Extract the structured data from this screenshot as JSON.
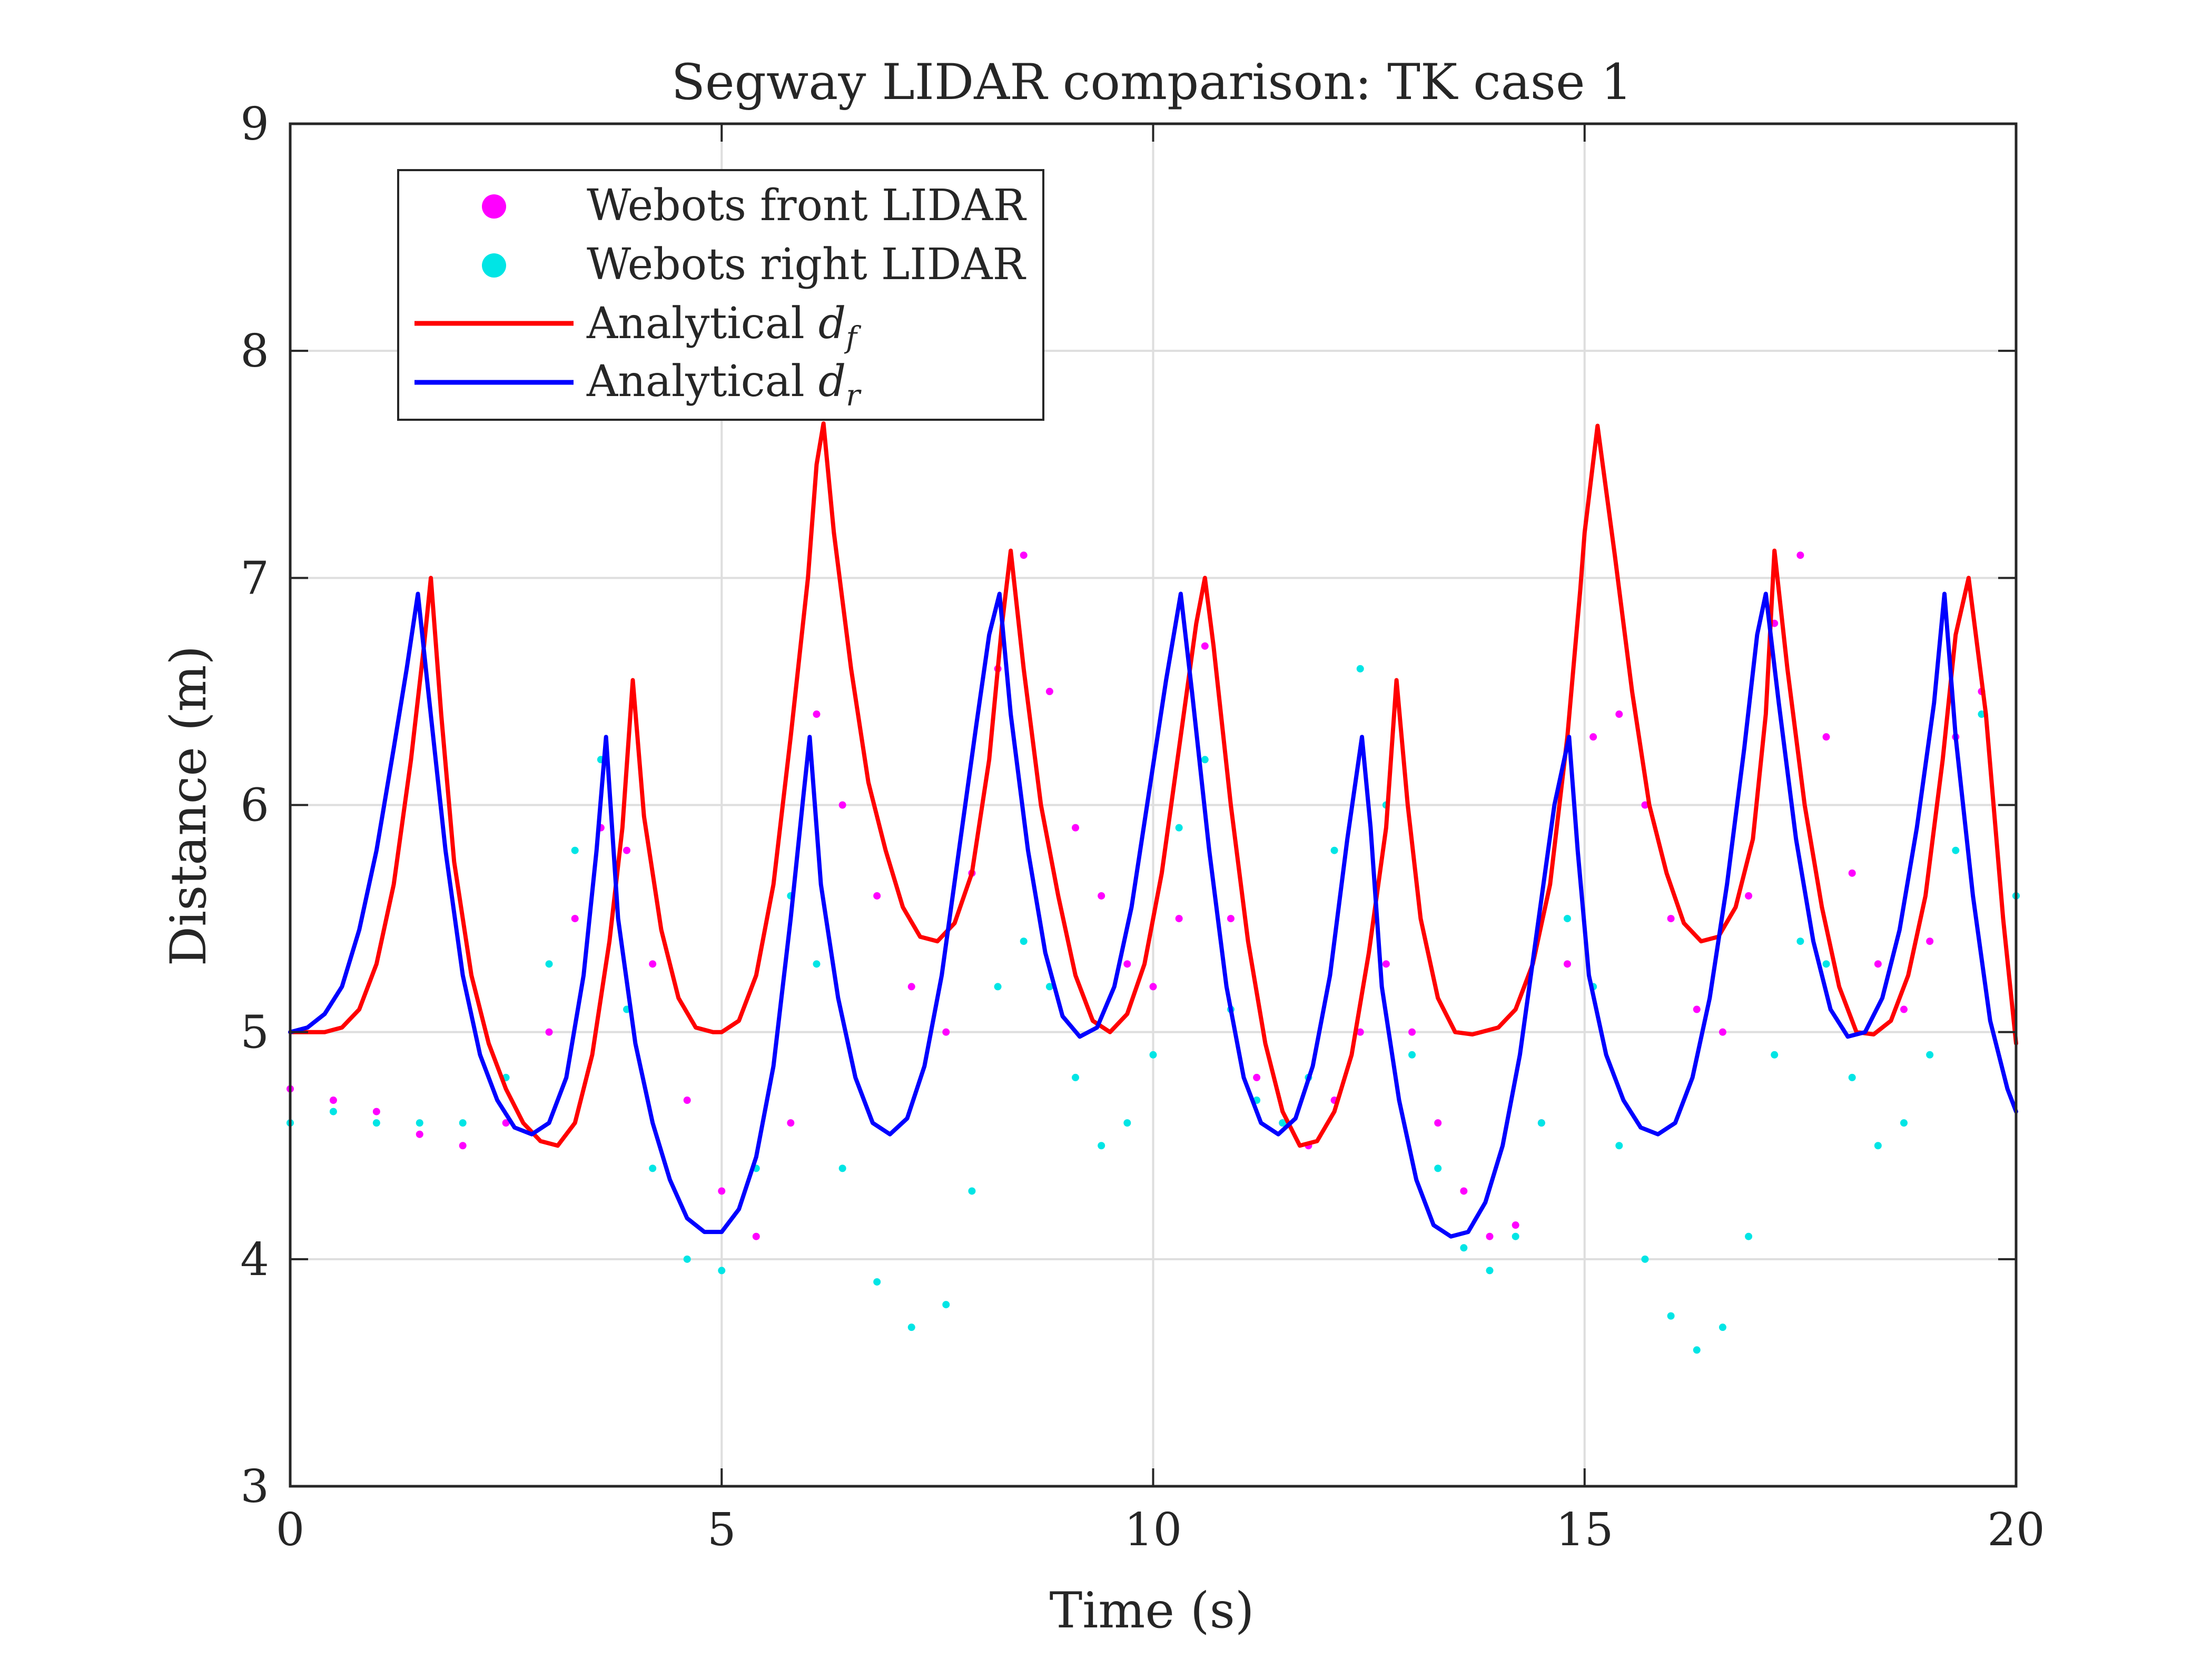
{
  "chart_data": {
    "type": "line",
    "title": "Segway LIDAR comparison: TK case 1",
    "xlabel": "Time (s)",
    "ylabel": "Distance (m)",
    "xlim": [
      0,
      20
    ],
    "ylim": [
      3,
      9
    ],
    "xticks": [
      0,
      5,
      10,
      15,
      20
    ],
    "xtick_labels": [
      "0",
      "5",
      "10",
      "15",
      "20"
    ],
    "yticks": [
      3,
      4,
      5,
      6,
      7,
      8,
      9
    ],
    "ytick_labels": [
      "3",
      "4",
      "5",
      "6",
      "7",
      "8",
      "9"
    ],
    "grid": true,
    "legend_position": "top-left",
    "legend": [
      {
        "label": "Webots front LIDAR",
        "marker": "dot",
        "color": "#ff00ff"
      },
      {
        "label": "Webots right LIDAR",
        "marker": "dot",
        "color": "#00e5e5"
      },
      {
        "label_main": "Analytical ",
        "label_var": "d",
        "label_sub": "f",
        "marker": "line",
        "color": "#ff0000"
      },
      {
        "label_main": "Analytical ",
        "label_var": "d",
        "label_sub": "r",
        "marker": "line",
        "color": "#0000ff"
      }
    ],
    "series": [
      {
        "name": "Webots front LIDAR",
        "kind": "scatter",
        "color": "#ff00ff",
        "x": [
          0.0,
          0.5,
          1.0,
          1.5,
          2.0,
          2.5,
          3.0,
          3.3,
          3.6,
          3.9,
          4.2,
          4.6,
          5.0,
          5.4,
          5.8,
          6.1,
          6.4,
          6.8,
          7.2,
          7.6,
          7.9,
          8.2,
          8.5,
          8.8,
          9.1,
          9.4,
          9.7,
          10.0,
          10.3,
          10.6,
          10.9,
          11.2,
          11.5,
          11.8,
          12.1,
          12.4,
          12.7,
          13.0,
          13.3,
          13.6,
          13.9,
          14.2,
          14.5,
          14.8,
          15.1,
          15.4,
          15.7,
          16.0,
          16.3,
          16.6,
          16.9,
          17.2,
          17.5,
          17.8,
          18.1,
          18.4,
          18.7,
          19.0,
          19.3,
          19.6,
          20.0
        ],
        "y": [
          4.75,
          4.7,
          4.65,
          4.55,
          4.5,
          4.6,
          5.0,
          5.5,
          5.9,
          5.8,
          5.3,
          4.7,
          4.3,
          4.1,
          4.6,
          6.4,
          6.0,
          5.6,
          5.2,
          5.0,
          5.7,
          6.6,
          7.1,
          6.5,
          5.9,
          5.6,
          5.3,
          5.2,
          5.5,
          6.7,
          5.5,
          4.8,
          4.6,
          4.5,
          4.7,
          5.0,
          5.3,
          5.0,
          4.6,
          4.3,
          4.1,
          4.15,
          4.6,
          5.3,
          6.3,
          6.4,
          6.0,
          5.5,
          5.1,
          5.0,
          5.6,
          6.8,
          7.1,
          6.3,
          5.7,
          5.3,
          5.1,
          5.4,
          6.3,
          6.5,
          5.6
        ]
      },
      {
        "name": "Webots right LIDAR",
        "kind": "scatter",
        "color": "#00e5e5",
        "x": [
          0.0,
          0.5,
          1.0,
          1.5,
          2.0,
          2.5,
          3.0,
          3.3,
          3.6,
          3.9,
          4.2,
          4.6,
          5.0,
          5.4,
          5.8,
          6.1,
          6.4,
          6.8,
          7.2,
          7.6,
          7.9,
          8.2,
          8.5,
          8.8,
          9.1,
          9.4,
          9.7,
          10.0,
          10.3,
          10.6,
          10.9,
          11.2,
          11.5,
          11.8,
          12.1,
          12.4,
          12.7,
          13.0,
          13.3,
          13.6,
          13.9,
          14.2,
          14.5,
          14.8,
          15.1,
          15.4,
          15.7,
          16.0,
          16.3,
          16.6,
          16.9,
          17.2,
          17.5,
          17.8,
          18.1,
          18.4,
          18.7,
          19.0,
          19.3,
          19.6,
          20.0
        ],
        "y": [
          4.6,
          4.65,
          4.6,
          4.6,
          4.6,
          4.8,
          5.3,
          5.8,
          6.2,
          5.1,
          4.4,
          4.0,
          3.95,
          4.4,
          5.6,
          5.3,
          4.4,
          3.9,
          3.7,
          3.8,
          4.3,
          5.2,
          5.4,
          5.2,
          4.8,
          4.5,
          4.6,
          4.9,
          5.9,
          6.2,
          5.1,
          4.7,
          4.6,
          4.8,
          5.8,
          6.6,
          6.0,
          4.9,
          4.4,
          4.05,
          3.95,
          4.1,
          4.6,
          5.5,
          5.2,
          4.5,
          4.0,
          3.75,
          3.6,
          3.7,
          4.1,
          4.9,
          5.4,
          5.3,
          4.8,
          4.5,
          4.6,
          4.9,
          5.8,
          6.4,
          5.6
        ]
      },
      {
        "name": "Analytical d_f",
        "kind": "line",
        "color": "#ff0000",
        "x": [
          0.0,
          0.2,
          0.4,
          0.6,
          0.8,
          1.0,
          1.2,
          1.4,
          1.55,
          1.63,
          1.75,
          1.9,
          2.1,
          2.3,
          2.5,
          2.7,
          2.9,
          3.1,
          3.3,
          3.5,
          3.7,
          3.85,
          3.97,
          4.1,
          4.3,
          4.5,
          4.7,
          4.9,
          5.0,
          5.2,
          5.4,
          5.6,
          5.8,
          6.0,
          6.1,
          6.18,
          6.3,
          6.5,
          6.7,
          6.9,
          7.1,
          7.3,
          7.5,
          7.7,
          7.9,
          8.1,
          8.25,
          8.35,
          8.5,
          8.7,
          8.9,
          9.1,
          9.3,
          9.5,
          9.7,
          9.9,
          10.1,
          10.3,
          10.5,
          10.6,
          10.7,
          10.9,
          11.1,
          11.3,
          11.5,
          11.7,
          11.9,
          12.1,
          12.3,
          12.5,
          12.7,
          12.82,
          12.95,
          13.1,
          13.3,
          13.5,
          13.7,
          13.8,
          14.0,
          14.2,
          14.4,
          14.6,
          14.8,
          14.95,
          15.0,
          15.15,
          15.35,
          15.55,
          15.75,
          15.95,
          16.15,
          16.35,
          16.55,
          16.75,
          16.95,
          17.1,
          17.2,
          17.35,
          17.55,
          17.75,
          17.95,
          18.15,
          18.35,
          18.55,
          18.75,
          18.95,
          19.15,
          19.3,
          19.45,
          19.65,
          19.85,
          20.0
        ],
        "y": [
          5.0,
          5.0,
          5.0,
          5.02,
          5.1,
          5.3,
          5.65,
          6.2,
          6.7,
          7.0,
          6.4,
          5.75,
          5.25,
          4.95,
          4.75,
          4.6,
          4.52,
          4.5,
          4.6,
          4.9,
          5.4,
          5.9,
          6.55,
          5.95,
          5.45,
          5.15,
          5.02,
          5.0,
          5.0,
          5.05,
          5.25,
          5.65,
          6.3,
          7.0,
          7.5,
          7.68,
          7.2,
          6.6,
          6.1,
          5.8,
          5.55,
          5.42,
          5.4,
          5.48,
          5.7,
          6.2,
          6.8,
          7.12,
          6.6,
          6.0,
          5.6,
          5.25,
          5.05,
          5.0,
          5.08,
          5.3,
          5.7,
          6.25,
          6.8,
          7.0,
          6.7,
          6.0,
          5.4,
          4.95,
          4.65,
          4.5,
          4.52,
          4.65,
          4.9,
          5.35,
          5.9,
          6.55,
          6.0,
          5.5,
          5.15,
          5.0,
          4.99,
          5.0,
          5.02,
          5.1,
          5.3,
          5.65,
          6.3,
          6.95,
          7.2,
          7.67,
          7.1,
          6.5,
          6.0,
          5.7,
          5.48,
          5.4,
          5.42,
          5.55,
          5.85,
          6.4,
          7.12,
          6.6,
          6.0,
          5.55,
          5.2,
          5.0,
          4.99,
          5.05,
          5.25,
          5.6,
          6.2,
          6.75,
          7.0,
          6.4,
          5.5,
          4.95
        ]
      },
      {
        "name": "Analytical d_r",
        "kind": "line",
        "color": "#0000ff",
        "x": [
          0.0,
          0.2,
          0.4,
          0.6,
          0.8,
          1.0,
          1.2,
          1.35,
          1.48,
          1.6,
          1.8,
          2.0,
          2.2,
          2.4,
          2.6,
          2.8,
          3.0,
          3.2,
          3.4,
          3.55,
          3.66,
          3.8,
          4.0,
          4.2,
          4.4,
          4.6,
          4.8,
          5.0,
          5.2,
          5.4,
          5.6,
          5.8,
          5.95,
          6.02,
          6.15,
          6.35,
          6.55,
          6.75,
          6.95,
          7.15,
          7.35,
          7.55,
          7.75,
          7.95,
          8.1,
          8.22,
          8.35,
          8.55,
          8.75,
          8.95,
          9.15,
          9.35,
          9.55,
          9.75,
          9.95,
          10.15,
          10.32,
          10.45,
          10.65,
          10.85,
          11.05,
          11.25,
          11.45,
          11.65,
          11.85,
          12.05,
          12.25,
          12.42,
          12.52,
          12.65,
          12.85,
          13.05,
          13.25,
          13.45,
          13.65,
          13.85,
          14.05,
          14.25,
          14.45,
          14.65,
          14.82,
          14.92,
          15.05,
          15.25,
          15.45,
          15.65,
          15.85,
          16.05,
          16.25,
          16.45,
          16.65,
          16.85,
          17.0,
          17.1,
          17.25,
          17.45,
          17.65,
          17.85,
          18.05,
          18.25,
          18.45,
          18.65,
          18.85,
          19.05,
          19.17,
          19.3,
          19.5,
          19.7,
          19.9,
          20.0
        ],
        "y": [
          5.0,
          5.02,
          5.08,
          5.2,
          5.45,
          5.8,
          6.25,
          6.6,
          6.93,
          6.5,
          5.8,
          5.25,
          4.9,
          4.7,
          4.58,
          4.55,
          4.6,
          4.8,
          5.25,
          5.8,
          6.3,
          5.5,
          4.95,
          4.6,
          4.35,
          4.18,
          4.12,
          4.12,
          4.22,
          4.45,
          4.85,
          5.5,
          6.05,
          6.3,
          5.65,
          5.15,
          4.8,
          4.6,
          4.55,
          4.62,
          4.85,
          5.25,
          5.8,
          6.35,
          6.75,
          6.93,
          6.4,
          5.8,
          5.35,
          5.07,
          4.98,
          5.02,
          5.2,
          5.55,
          6.05,
          6.55,
          6.93,
          6.5,
          5.8,
          5.2,
          4.8,
          4.6,
          4.55,
          4.62,
          4.85,
          5.25,
          5.85,
          6.3,
          5.9,
          5.2,
          4.7,
          4.35,
          4.15,
          4.1,
          4.12,
          4.25,
          4.5,
          4.9,
          5.45,
          6.0,
          6.3,
          5.8,
          5.25,
          4.9,
          4.7,
          4.58,
          4.55,
          4.6,
          4.8,
          5.15,
          5.65,
          6.25,
          6.75,
          6.93,
          6.45,
          5.85,
          5.4,
          5.1,
          4.98,
          5.0,
          5.15,
          5.45,
          5.9,
          6.45,
          6.93,
          6.3,
          5.6,
          5.05,
          4.75,
          4.65
        ]
      }
    ]
  }
}
